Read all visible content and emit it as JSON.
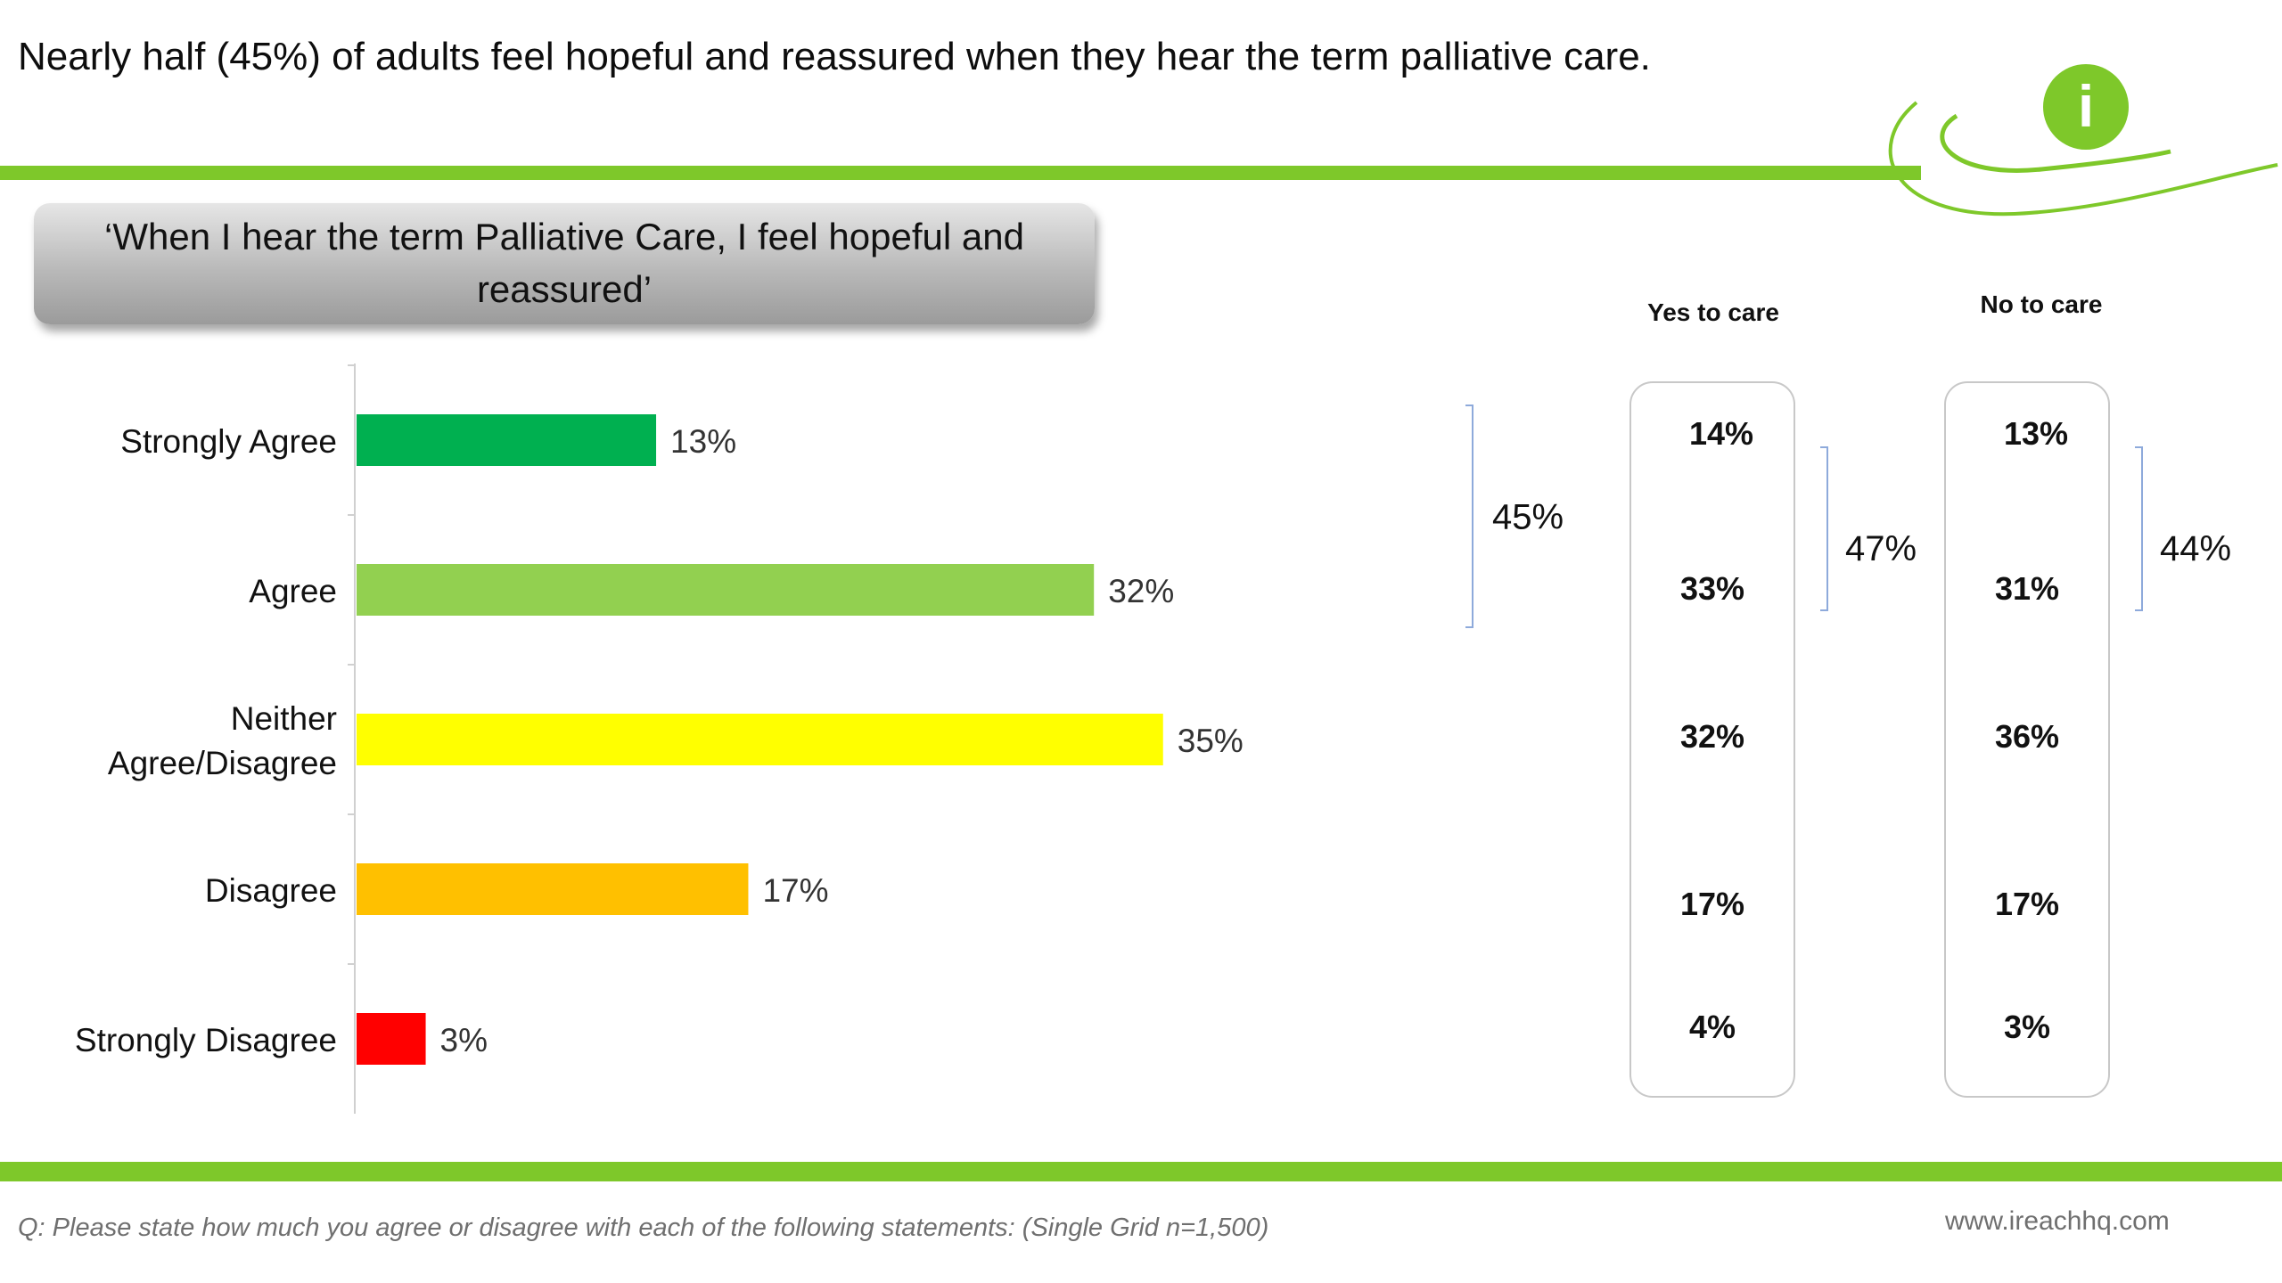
{
  "headline": "Nearly half (45%) of adults feel hopeful and reassured when they hear the term palliative care.",
  "statement": "‘When I hear the term Palliative Care, I feel hopeful and reassured’",
  "footnote": "Q: Please state how much you agree or disagree with each of the following statements: (Single Grid n=1,500)",
  "website": "www.ireachhq.com",
  "logo": {
    "icon": "info-icon",
    "letter": "i",
    "color": "#7ec82a"
  },
  "chart_data": [
    {
      "type": "bar",
      "orientation": "horizontal",
      "categories": [
        "Strongly Agree",
        "Agree",
        "Neither Agree/Disagree",
        "Disagree",
        "Strongly Disagree"
      ],
      "category_lines": [
        [
          "Strongly Agree"
        ],
        [
          "Agree"
        ],
        [
          "Neither",
          "Agree/Disagree"
        ],
        [
          "Disagree"
        ],
        [
          "Strongly Disagree"
        ]
      ],
      "values": [
        13,
        32,
        35,
        17,
        3
      ],
      "value_labels": [
        "13%",
        "32%",
        "35%",
        "17%",
        "3%"
      ],
      "colors": [
        "#00b050",
        "#92d050",
        "#ffff00",
        "#ffc000",
        "#ff0000"
      ],
      "bracket": {
        "covers": [
          0,
          1
        ],
        "label": "45%"
      },
      "xlim": [
        0,
        40
      ],
      "grid": false,
      "legend": "none"
    },
    {
      "type": "table",
      "columns": [
        {
          "header": "Yes to care",
          "values": [
            "14%",
            "33%",
            "32%",
            "17%",
            "4%"
          ],
          "bracket": {
            "covers": [
              0,
              1
            ],
            "label": "47%"
          }
        },
        {
          "header": "No to care",
          "values": [
            "13%",
            "31%",
            "36%",
            "17%",
            "3%"
          ],
          "bracket": {
            "covers": [
              0,
              1
            ],
            "label": "44%"
          }
        }
      ]
    }
  ],
  "colors": {
    "accent_green": "#7ec82a",
    "bracket_blue": "#8eaadb",
    "footnote_gray": "#6f6f6f"
  }
}
